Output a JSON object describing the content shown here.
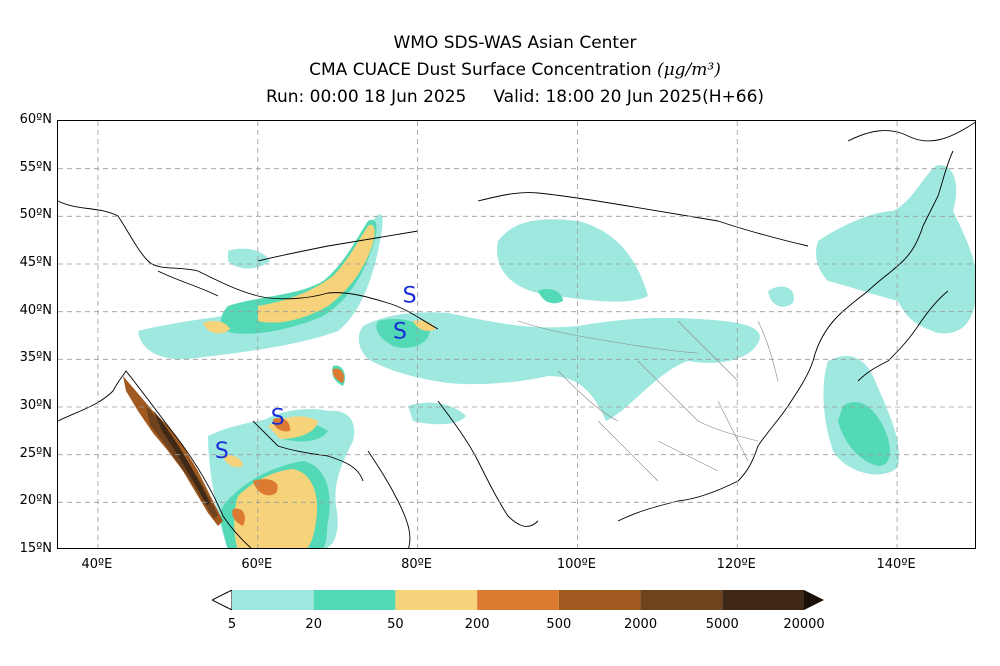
{
  "header": {
    "center": "WMO SDS-WAS Asian Center",
    "product": "CMA CUACE Dust Surface Concentration",
    "unit": "(μg/m³)",
    "run": "Run: 00:00 18 Jun 2025",
    "valid": "Valid: 18:00 20 Jun 2025(H+66)"
  },
  "map": {
    "lon_range": [
      35,
      150
    ],
    "lat_range": [
      15,
      60
    ],
    "lat_labels": [
      {
        "value": 60,
        "text": "60ºN"
      },
      {
        "value": 55,
        "text": "55ºN"
      },
      {
        "value": 50,
        "text": "50ºN"
      },
      {
        "value": 45,
        "text": "45ºN"
      },
      {
        "value": 40,
        "text": "40ºN"
      },
      {
        "value": 35,
        "text": "35ºN"
      },
      {
        "value": 30,
        "text": "30ºN"
      },
      {
        "value": 25,
        "text": "25ºN"
      },
      {
        "value": 20,
        "text": "20ºN"
      },
      {
        "value": 15,
        "text": "15ºN"
      }
    ],
    "lon_labels": [
      {
        "value": 40,
        "text": "40ºE"
      },
      {
        "value": 60,
        "text": "60ºE"
      },
      {
        "value": 80,
        "text": "80ºE"
      },
      {
        "value": 100,
        "text": "100ºE"
      },
      {
        "value": 120,
        "text": "120ºE"
      },
      {
        "value": 140,
        "text": "140ºE"
      }
    ],
    "gridlines": true,
    "storm_markers": [
      {
        "lon": 55.5,
        "lat": 25.3,
        "text": "S"
      },
      {
        "lon": 62.5,
        "lat": 28.8,
        "text": "S"
      },
      {
        "lon": 77.8,
        "lat": 37.8,
        "text": "S"
      },
      {
        "lon": 79.0,
        "lat": 41.6,
        "text": "S"
      }
    ]
  },
  "colorbar": {
    "levels": [
      "5",
      "20",
      "50",
      "200",
      "500",
      "2000",
      "5000",
      "20000"
    ],
    "colors": [
      "#9fe8e0",
      "#53d9b5",
      "#f6d37a",
      "#dd7a32",
      "#a05a20",
      "#6e431d",
      "#3f2816"
    ],
    "under_color": "#ffffff",
    "over_color": "#1a1008"
  }
}
